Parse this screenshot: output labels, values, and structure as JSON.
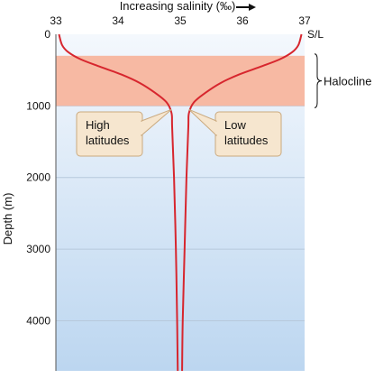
{
  "chart_data": {
    "type": "line",
    "xlabel": "Increasing salinity (‰)",
    "ylabel": "Depth (m)",
    "x_axis_unit_label": "S/L",
    "xlim": [
      33,
      37
    ],
    "ylim": [
      0,
      4700
    ],
    "y_inverted": true,
    "x_ticks": [
      33,
      34,
      35,
      36,
      37
    ],
    "y_ticks": [
      0,
      1000,
      2000,
      3000,
      4000
    ],
    "grid": "horizontal",
    "band": {
      "label": "Halocline",
      "depth_from": 300,
      "depth_to": 1000,
      "color": "#f7b9a3"
    },
    "series": [
      {
        "name": "",
        "color": "#d7262e",
        "points": [
          [
            33.05,
            0
          ],
          [
            33.1,
            150
          ],
          [
            33.2,
            250
          ],
          [
            33.4,
            350
          ],
          [
            33.7,
            450
          ],
          [
            34.05,
            560
          ],
          [
            34.35,
            680
          ],
          [
            34.6,
            820
          ],
          [
            34.78,
            950
          ],
          [
            34.86,
            1100
          ],
          [
            34.87,
            1300
          ],
          [
            34.9,
            2000
          ],
          [
            34.93,
            3000
          ],
          [
            34.95,
            4000
          ],
          [
            34.96,
            4700
          ]
        ]
      },
      {
        "name": "",
        "color": "#d7262e",
        "points": [
          [
            36.95,
            0
          ],
          [
            36.9,
            150
          ],
          [
            36.8,
            250
          ],
          [
            36.6,
            350
          ],
          [
            36.3,
            450
          ],
          [
            35.95,
            560
          ],
          [
            35.65,
            680
          ],
          [
            35.4,
            820
          ],
          [
            35.22,
            950
          ],
          [
            35.14,
            1100
          ],
          [
            35.13,
            1300
          ],
          [
            35.1,
            2000
          ],
          [
            35.07,
            3000
          ],
          [
            35.04,
            4000
          ],
          [
            35.03,
            4700
          ]
        ]
      }
    ],
    "annotations": [
      {
        "lines": [
          "High",
          "latitudes"
        ],
        "points_to": [
          34.86,
          1050
        ]
      },
      {
        "lines": [
          "Low",
          "latitudes"
        ],
        "points_to": [
          35.14,
          1050
        ]
      }
    ],
    "style": {
      "bg_top": "#f4f8fd",
      "bg_bottom": "#bcd6f0",
      "grid_color": "#b7c9dc",
      "callout_fill": "#f6e6cf",
      "callout_stroke": "#caa97e"
    }
  }
}
